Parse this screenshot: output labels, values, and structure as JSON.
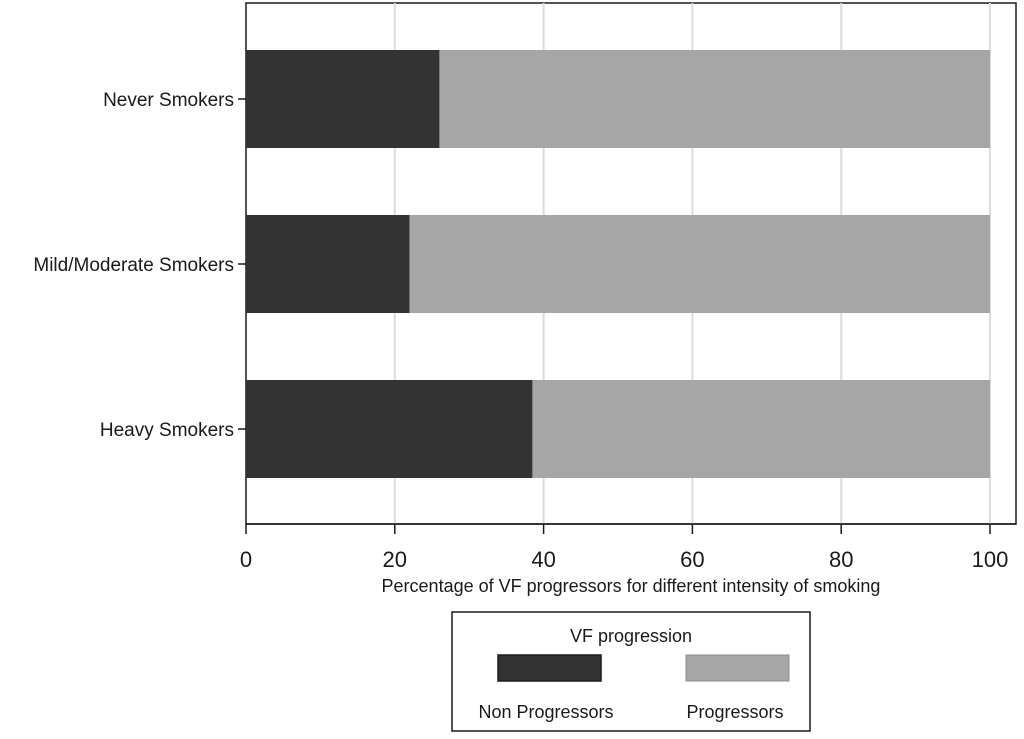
{
  "chart_data": {
    "type": "bar",
    "orientation": "horizontal",
    "stacked": true,
    "categories": [
      "Never Smokers",
      "Mild/Moderate Smokers",
      "Heavy Smokers"
    ],
    "series": [
      {
        "name": "Non Progressors",
        "values": [
          26,
          22,
          38.5
        ],
        "color": "#333333"
      },
      {
        "name": "Progressors",
        "values": [
          74,
          78,
          61.5
        ],
        "color": "#a6a6a6"
      }
    ],
    "xlabel": "Percentage of VF progressors for different intensity of smoking",
    "xlim": [
      0,
      100
    ],
    "xticks": [
      "0",
      "20",
      "40",
      "60",
      "80",
      "100"
    ],
    "grid": true,
    "legend": {
      "title": "VF progression",
      "placement": "bottom"
    }
  }
}
